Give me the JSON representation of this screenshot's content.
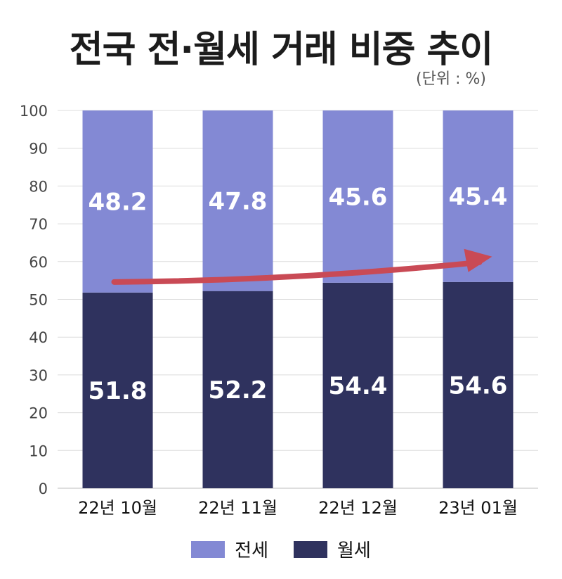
{
  "chart_data": {
    "type": "bar",
    "stacked": true,
    "title": "전국 전·월세 거래 비중 추이",
    "unit": "(단위 : %)",
    "categories": [
      "22년 10월",
      "22년 11월",
      "22년 12월",
      "23년 01월"
    ],
    "series": [
      {
        "name": "월세",
        "color": "#2f325e",
        "values": [
          51.8,
          52.2,
          54.4,
          54.6
        ]
      },
      {
        "name": "전세",
        "color": "#8389d4",
        "values": [
          48.2,
          47.8,
          45.6,
          45.4
        ]
      }
    ],
    "ylim": [
      0,
      100
    ],
    "yticks": [
      0,
      10,
      20,
      30,
      40,
      50,
      60,
      70,
      80,
      90,
      100
    ],
    "highlight_tick": {
      "value": 50,
      "color": "#c0383c"
    },
    "grid": true,
    "legend_position": "bottom",
    "annotation": {
      "type": "trend-arrow",
      "color": "#c94a55"
    }
  }
}
